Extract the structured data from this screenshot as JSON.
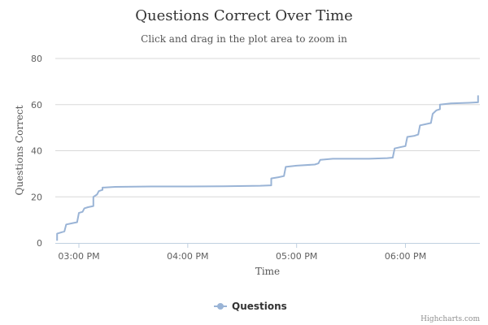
{
  "chart_data": {
    "type": "line",
    "title": "Questions Correct Over Time",
    "subtitle": "Click and drag in the plot area to zoom in",
    "xlabel": "Time",
    "ylabel": "Questions Correct",
    "x_type": "time",
    "xlim": [
      "14:47",
      "18:41"
    ],
    "ylim": [
      0,
      80
    ],
    "y_ticks": [
      0,
      20,
      40,
      60,
      80
    ],
    "x_ticks": [
      {
        "time": "15:00",
        "label": "03:00 PM"
      },
      {
        "time": "16:00",
        "label": "04:00 PM"
      },
      {
        "time": "17:00",
        "label": "05:00 PM"
      },
      {
        "time": "18:00",
        "label": "06:00 PM"
      }
    ],
    "grid": true,
    "legend_position": "bottom-center",
    "series": [
      {
        "name": "Questions",
        "color": "#9ab4d6",
        "points": [
          [
            "14:48",
            1
          ],
          [
            "14:48",
            4
          ],
          [
            "14:50",
            4.5
          ],
          [
            "14:52",
            5
          ],
          [
            "14:53",
            8
          ],
          [
            "14:56",
            8.5
          ],
          [
            "14:59",
            9
          ],
          [
            "15:00",
            13
          ],
          [
            "15:02",
            13.5
          ],
          [
            "15:03",
            15
          ],
          [
            "15:05",
            15.5
          ],
          [
            "15:08",
            16
          ],
          [
            "15:08",
            20
          ],
          [
            "15:10",
            21
          ],
          [
            "15:11",
            22.5
          ],
          [
            "15:13",
            23
          ],
          [
            "15:13",
            24
          ],
          [
            "15:20",
            24.3
          ],
          [
            "15:40",
            24.5
          ],
          [
            "16:00",
            24.5
          ],
          [
            "16:20",
            24.6
          ],
          [
            "16:40",
            24.8
          ],
          [
            "16:46",
            25
          ],
          [
            "16:46",
            28
          ],
          [
            "16:50",
            28.5
          ],
          [
            "16:53",
            29
          ],
          [
            "16:54",
            33
          ],
          [
            "17:00",
            33.5
          ],
          [
            "17:10",
            34
          ],
          [
            "17:12",
            34.5
          ],
          [
            "17:13",
            36
          ],
          [
            "17:20",
            36.5
          ],
          [
            "17:40",
            36.5
          ],
          [
            "17:50",
            36.8
          ],
          [
            "17:53",
            37
          ],
          [
            "17:54",
            41
          ],
          [
            "17:57",
            41.5
          ],
          [
            "18:00",
            42
          ],
          [
            "18:01",
            46
          ],
          [
            "18:05",
            46.5
          ],
          [
            "18:07",
            47
          ],
          [
            "18:08",
            51
          ],
          [
            "18:11",
            51.5
          ],
          [
            "18:14",
            52
          ],
          [
            "18:15",
            56
          ],
          [
            "18:17",
            57.5
          ],
          [
            "18:19",
            58
          ],
          [
            "18:19",
            60
          ],
          [
            "18:25",
            60.5
          ],
          [
            "18:35",
            60.8
          ],
          [
            "18:40",
            61
          ],
          [
            "18:40",
            64
          ]
        ]
      }
    ]
  },
  "credits": "Highcharts.com"
}
